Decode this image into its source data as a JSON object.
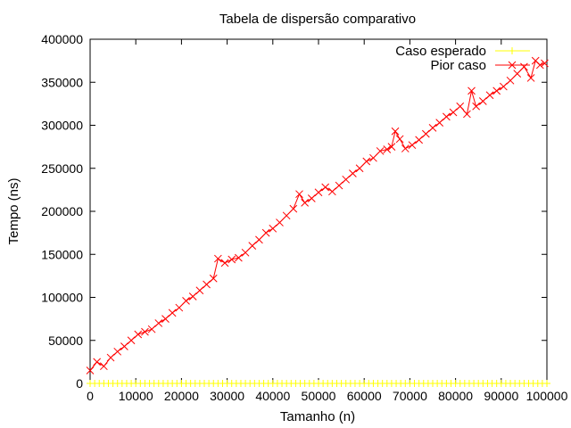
{
  "chart_data": {
    "type": "line",
    "title": "Tabela de dispersão comparativo",
    "xlabel": "Tamanho (n)",
    "ylabel": "Tempo (ns)",
    "xlim": [
      0,
      100000
    ],
    "ylim": [
      0,
      400000
    ],
    "xticks": [
      0,
      10000,
      20000,
      30000,
      40000,
      50000,
      60000,
      70000,
      80000,
      90000,
      100000
    ],
    "xtick_labels": [
      "0",
      "10000",
      "20000",
      "30000",
      "40000",
      "50000",
      "60000",
      "70000",
      "80000",
      "90000",
      "100000"
    ],
    "yticks": [
      0,
      50000,
      100000,
      150000,
      200000,
      250000,
      300000,
      350000,
      400000
    ],
    "ytick_labels": [
      "0",
      "50000",
      "100000",
      "150000",
      "200000",
      "250000",
      "300000",
      "350000",
      "400000"
    ],
    "grid": false,
    "legend_position": "top-right",
    "series": [
      {
        "name": "Caso esperado",
        "color": "#ffff00",
        "marker": "+",
        "x": [
          0,
          1000,
          2000,
          3000,
          4000,
          5000,
          6000,
          7000,
          8000,
          9000,
          10000,
          11000,
          12000,
          13000,
          14000,
          15000,
          16000,
          17000,
          18000,
          19000,
          20000,
          21000,
          22000,
          23000,
          24000,
          25000,
          26000,
          27000,
          28000,
          29000,
          30000,
          31000,
          32000,
          33000,
          34000,
          35000,
          36000,
          37000,
          38000,
          39000,
          40000,
          41000,
          42000,
          43000,
          44000,
          45000,
          46000,
          47000,
          48000,
          49000,
          50000,
          51000,
          52000,
          53000,
          54000,
          55000,
          56000,
          57000,
          58000,
          59000,
          60000,
          61000,
          62000,
          63000,
          64000,
          65000,
          66000,
          67000,
          68000,
          69000,
          70000,
          71000,
          72000,
          73000,
          74000,
          75000,
          76000,
          77000,
          78000,
          79000,
          80000,
          81000,
          82000,
          83000,
          84000,
          85000,
          86000,
          87000,
          88000,
          89000,
          90000,
          91000,
          92000,
          93000,
          94000,
          95000,
          96000,
          97000,
          98000,
          99000,
          100000
        ],
        "y": [
          0,
          0,
          0,
          0,
          0,
          0,
          0,
          0,
          0,
          0,
          0,
          0,
          0,
          0,
          0,
          0,
          0,
          0,
          0,
          0,
          0,
          0,
          0,
          0,
          0,
          0,
          0,
          0,
          0,
          0,
          0,
          0,
          0,
          0,
          0,
          0,
          0,
          0,
          0,
          0,
          0,
          0,
          0,
          0,
          0,
          0,
          0,
          0,
          0,
          0,
          0,
          0,
          0,
          0,
          0,
          0,
          0,
          0,
          0,
          0,
          0,
          0,
          0,
          0,
          0,
          0,
          0,
          0,
          0,
          0,
          0,
          0,
          0,
          0,
          0,
          0,
          0,
          0,
          0,
          0,
          0,
          0,
          0,
          0,
          0,
          0,
          0,
          0,
          0,
          0,
          0,
          0,
          0,
          0,
          0,
          0,
          0,
          0,
          0,
          0,
          0
        ]
      },
      {
        "name": "Pior caso",
        "color": "#ff0000",
        "marker": "x",
        "x": [
          0,
          1500,
          3000,
          4500,
          6000,
          7500,
          9000,
          10500,
          12000,
          13500,
          15000,
          16500,
          18000,
          19500,
          21000,
          22500,
          24000,
          25500,
          27000,
          28000,
          29500,
          31000,
          32500,
          34000,
          35500,
          37000,
          38500,
          40000,
          41500,
          43000,
          44500,
          45800,
          47000,
          48500,
          50000,
          51500,
          53000,
          54500,
          56000,
          57500,
          59000,
          60500,
          62000,
          63500,
          65000,
          66000,
          66800,
          67800,
          69000,
          70500,
          72000,
          73500,
          75000,
          76500,
          78000,
          79500,
          81000,
          82500,
          83500,
          84500,
          86000,
          87500,
          89000,
          90500,
          92000,
          93500,
          95000,
          96500,
          97500,
          98500,
          99500
        ],
        "y": [
          15000,
          25000,
          20000,
          30000,
          37000,
          43000,
          50000,
          57000,
          60000,
          63000,
          70000,
          75000,
          82000,
          88000,
          96000,
          101000,
          108000,
          115000,
          122000,
          145000,
          140000,
          144000,
          146000,
          152000,
          160000,
          167000,
          175000,
          180000,
          187000,
          195000,
          203000,
          220000,
          210000,
          215000,
          222000,
          228000,
          223000,
          230000,
          237000,
          244000,
          250000,
          258000,
          262000,
          270000,
          272000,
          275000,
          293000,
          284000,
          273000,
          277000,
          283000,
          290000,
          297000,
          303000,
          310000,
          315000,
          322000,
          313000,
          340000,
          322000,
          328000,
          335000,
          340000,
          345000,
          352000,
          360000,
          368000,
          355000,
          375000,
          370000,
          372000
        ]
      }
    ]
  }
}
